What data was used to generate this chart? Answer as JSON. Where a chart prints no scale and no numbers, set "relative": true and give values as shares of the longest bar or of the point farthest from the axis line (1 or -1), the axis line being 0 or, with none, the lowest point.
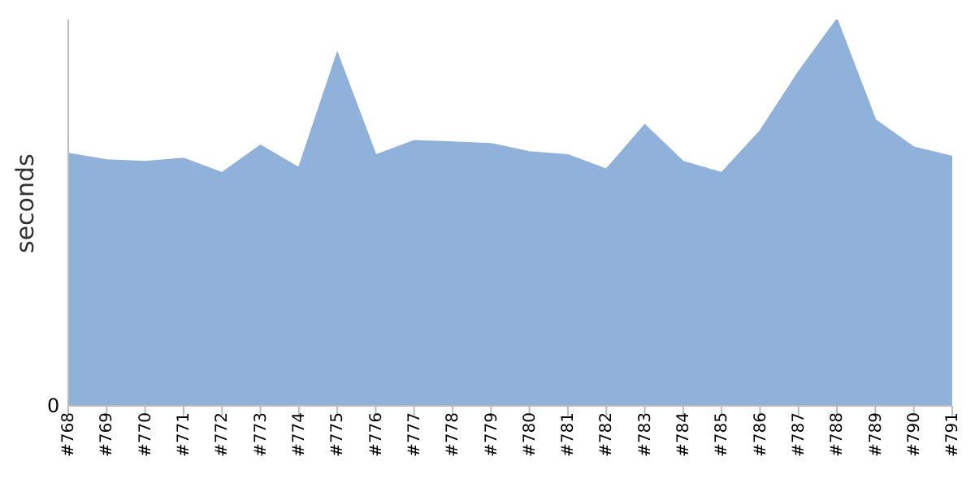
{
  "chart_data": {
    "type": "area",
    "ylabel": "seconds",
    "relative": true,
    "annotations": [
      "0"
    ],
    "color": "#8fb1da",
    "categories": [
      "#768",
      "#769",
      "#770",
      "#771",
      "#772",
      "#773",
      "#774",
      "#775",
      "#776",
      "#777",
      "#778",
      "#779",
      "#780",
      "#781",
      "#782",
      "#783",
      "#784",
      "#785",
      "#786",
      "#787",
      "#788",
      "#789",
      "#790",
      "#791"
    ],
    "values": [
      0.653,
      0.636,
      0.632,
      0.64,
      0.603,
      0.674,
      0.616,
      0.913,
      0.649,
      0.686,
      0.682,
      0.678,
      0.657,
      0.649,
      0.612,
      0.727,
      0.632,
      0.603,
      0.711,
      0.864,
      1,
      0.74,
      0.669,
      0.645
    ],
    "grid": false,
    "legend": false
  }
}
